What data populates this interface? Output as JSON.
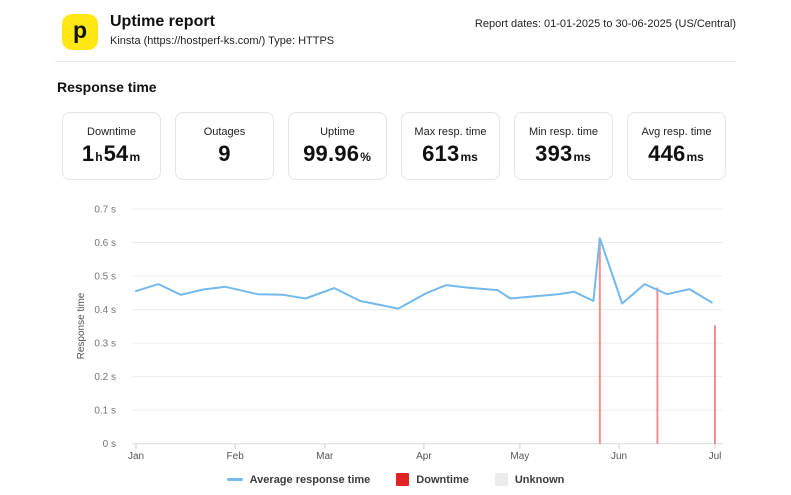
{
  "header": {
    "logo_glyph": "p",
    "logo_color": "#ffe713",
    "title": "Uptime report",
    "subtitle": "Kinsta (https://hostperf-ks.com/) Type: HTTPS",
    "report_dates": "Report dates: 01-01-2025 to 30-06-2025 (US/Central)"
  },
  "section_title": "Response time",
  "stats": {
    "cards": [
      {
        "label": "Downtime",
        "value": "1h54m",
        "parts": [
          [
            "1",
            "lg"
          ],
          [
            "h",
            "sm"
          ],
          [
            "54",
            "lg"
          ],
          [
            "m",
            "sm"
          ]
        ]
      },
      {
        "label": "Outages",
        "value": "9",
        "parts": [
          [
            "9",
            "lg"
          ]
        ]
      },
      {
        "label": "Uptime",
        "value": "99.96%",
        "parts": [
          [
            "99.96",
            "lg"
          ],
          [
            "%",
            "sm"
          ]
        ]
      },
      {
        "label": "Max resp. time",
        "value": "613ms",
        "parts": [
          [
            "613",
            "lg"
          ],
          [
            "ms",
            "sm"
          ]
        ]
      },
      {
        "label": "Min resp. time",
        "value": "393ms",
        "parts": [
          [
            "393",
            "lg"
          ],
          [
            "ms",
            "sm"
          ]
        ]
      },
      {
        "label": "Avg resp. time",
        "value": "446ms",
        "parts": [
          [
            "446",
            "lg"
          ],
          [
            "ms",
            "sm"
          ]
        ]
      }
    ]
  },
  "chart_data": {
    "type": "line",
    "title": "Response time",
    "xlabel": "",
    "ylabel": "Response time",
    "ylim": [
      0,
      0.7
    ],
    "grid": true,
    "legend_position": "bottom",
    "y_ticks": [
      {
        "value": 0.0,
        "label": "0 s"
      },
      {
        "value": 0.1,
        "label": "0.1 s"
      },
      {
        "value": 0.2,
        "label": "0.2 s"
      },
      {
        "value": 0.3,
        "label": "0.3 s"
      },
      {
        "value": 0.4,
        "label": "0.4 s"
      },
      {
        "value": 0.5,
        "label": "0.5 s"
      },
      {
        "value": 0.6,
        "label": "0.6 s"
      },
      {
        "value": 0.7,
        "label": "0.7 s"
      }
    ],
    "x_range_days": [
      0,
      181
    ],
    "x_months": [
      {
        "label": "Jan",
        "day": 0
      },
      {
        "label": "Feb",
        "day": 31
      },
      {
        "label": "Mar",
        "day": 59
      },
      {
        "label": "Apr",
        "day": 90
      },
      {
        "label": "May",
        "day": 120
      },
      {
        "label": "Jun",
        "day": 151
      },
      {
        "label": "Jul",
        "day": 181
      }
    ],
    "series": [
      {
        "name": "Average response time",
        "color": "#74b9ee",
        "unit": "seconds",
        "points_day_sec": [
          [
            0,
            0.455
          ],
          [
            7,
            0.476
          ],
          [
            14,
            0.444
          ],
          [
            21,
            0.46
          ],
          [
            28,
            0.468
          ],
          [
            38,
            0.446
          ],
          [
            46,
            0.444
          ],
          [
            53,
            0.433
          ],
          [
            62,
            0.464
          ],
          [
            70,
            0.426
          ],
          [
            82,
            0.403
          ],
          [
            91,
            0.45
          ],
          [
            97,
            0.473
          ],
          [
            104,
            0.465
          ],
          [
            113,
            0.458
          ],
          [
            117,
            0.433
          ],
          [
            124,
            0.439
          ],
          [
            132,
            0.446
          ],
          [
            137,
            0.453
          ],
          [
            143,
            0.426
          ],
          [
            145,
            0.613
          ],
          [
            152,
            0.418
          ],
          [
            159,
            0.476
          ],
          [
            166,
            0.446
          ],
          [
            173,
            0.461
          ],
          [
            180,
            0.421
          ]
        ]
      }
    ],
    "downtime_events": [
      {
        "day": 145,
        "top_s": 0.613
      },
      {
        "day": 163,
        "top_s": 0.466
      },
      {
        "day": 181,
        "top_s": 0.353
      }
    ],
    "downtime_color": "#e02424",
    "unknown_color": "#ececec",
    "legend": [
      {
        "label": "Average response time",
        "swatch": "line",
        "color": "#74b9ee"
      },
      {
        "label": "Downtime",
        "swatch": "box",
        "color": "#e02424"
      },
      {
        "label": "Unknown",
        "swatch": "box",
        "color": "#ececec"
      }
    ]
  }
}
